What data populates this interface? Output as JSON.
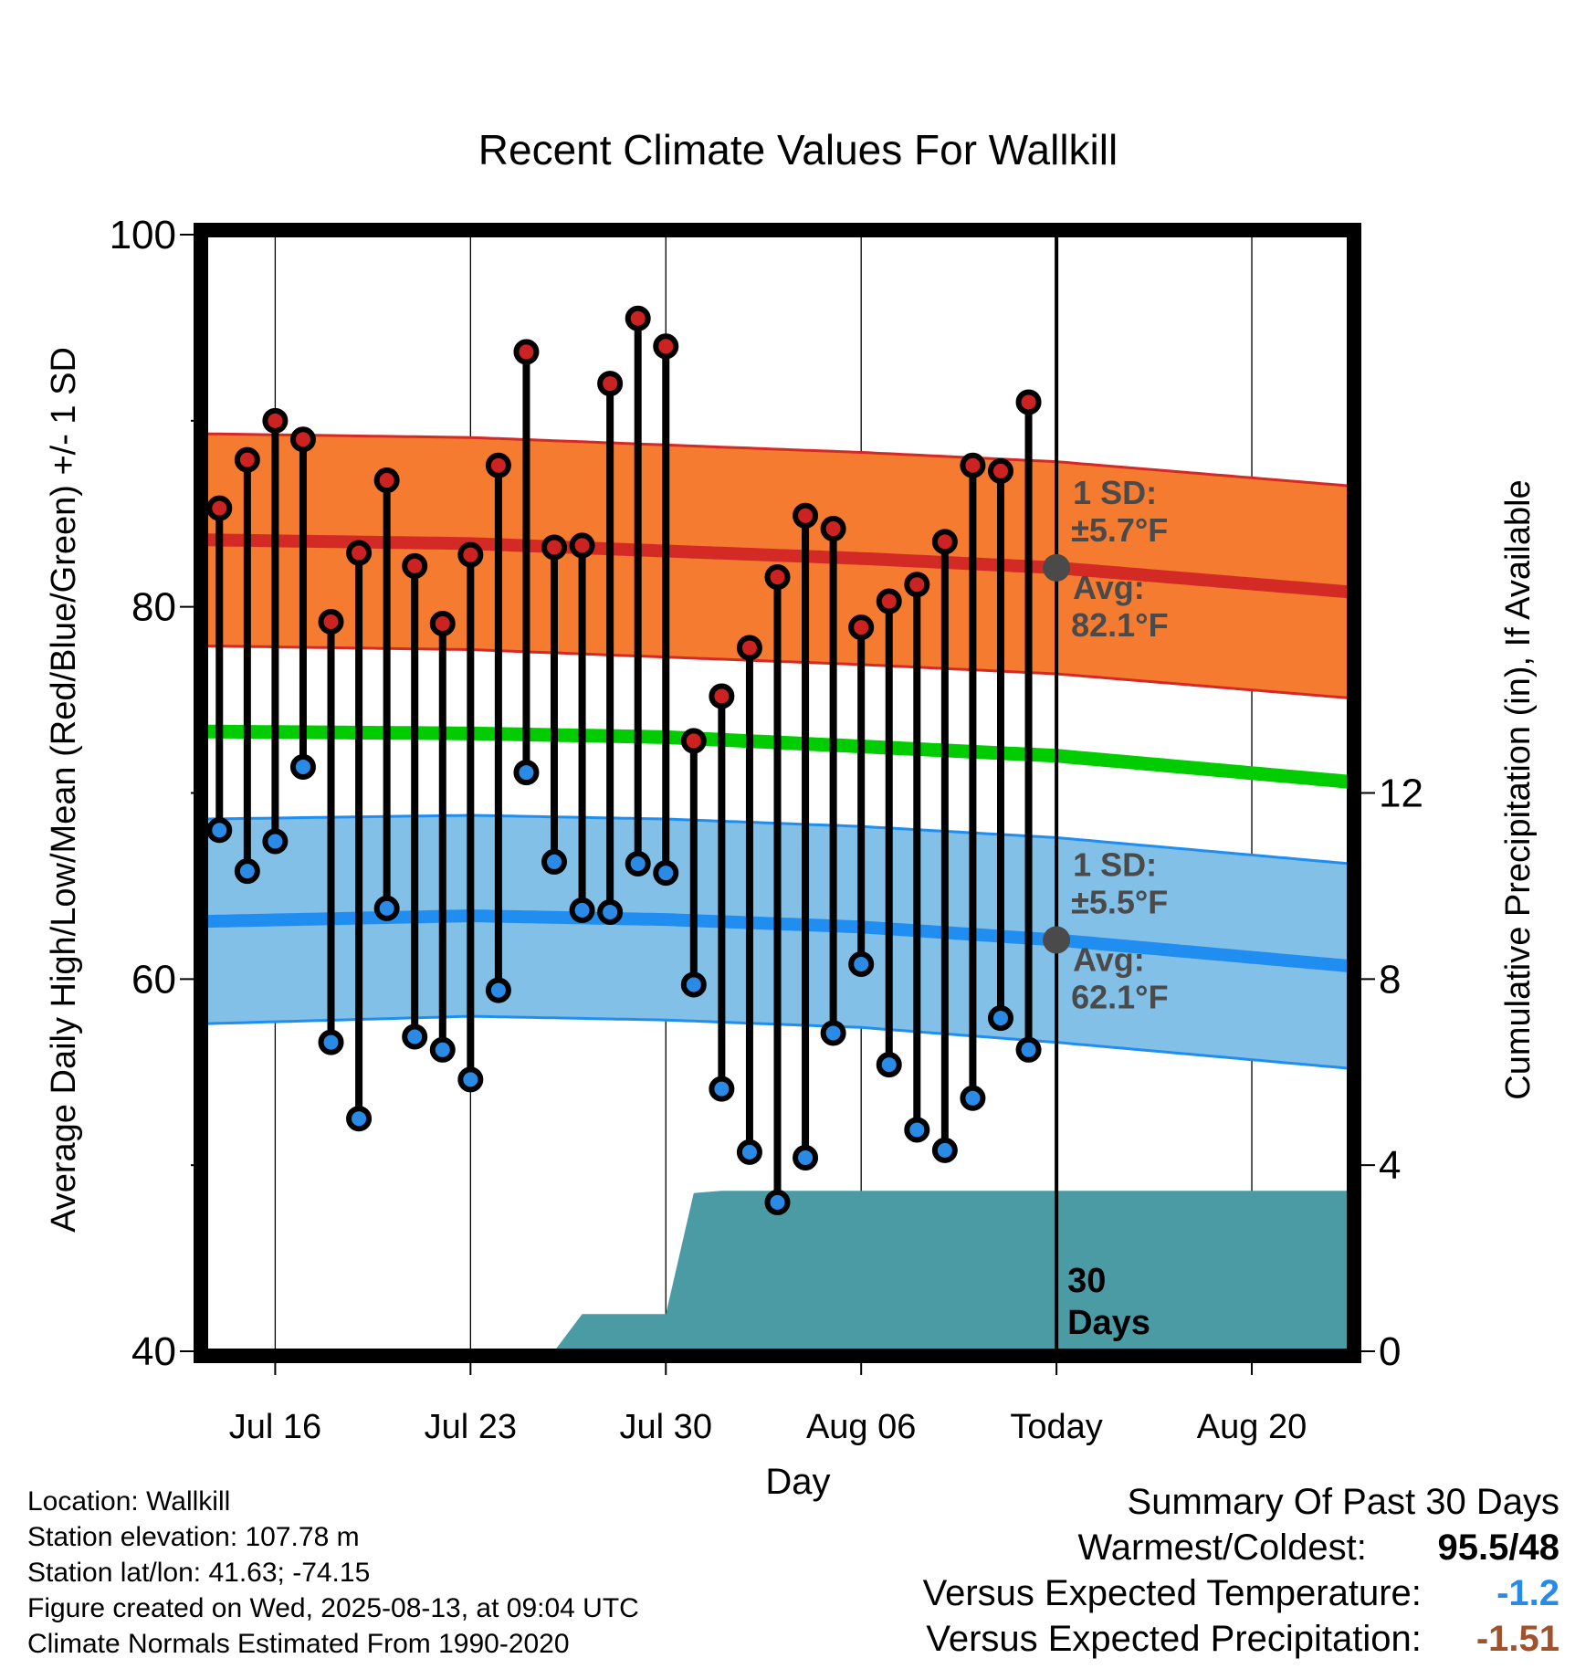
{
  "chart_data": {
    "type": "line",
    "title": "Recent Climate Values For Wallkill",
    "xlabel": "Day",
    "ylabel": "Average Daily High/Low/Mean (Red/Blue/Green) +/- 1 SD",
    "y2label": "Cumulative Precipitation (in), If Available",
    "ylim": [
      40,
      100
    ],
    "y_ticks": [
      40,
      60,
      80,
      100
    ],
    "y_minor_ticks": [
      50,
      70,
      90
    ],
    "y2lim": [
      0,
      24
    ],
    "y2_ticks": [
      0,
      4,
      8,
      12
    ],
    "xlim": [
      13.5,
      54.5
    ],
    "x_ticks": [
      {
        "day": 16,
        "label": "Jul 16"
      },
      {
        "day": 23,
        "label": "Jul 23"
      },
      {
        "day": 30,
        "label": "Jul 30"
      },
      {
        "day": 37,
        "label": "Aug 06"
      },
      {
        "day": 44,
        "label": "Today"
      },
      {
        "day": 51,
        "label": "Aug 20"
      }
    ],
    "grid": true,
    "today_day": 44,
    "today_marker_label": "30\nDays",
    "normals": {
      "high_avg": {
        "x": [
          13.5,
          23,
          30,
          37,
          44,
          54.5
        ],
        "y": [
          83.6,
          83.4,
          83.0,
          82.6,
          82.1,
          80.8
        ]
      },
      "high_plus": {
        "x": [
          13.5,
          23,
          30,
          37,
          44,
          54.5
        ],
        "y": [
          89.3,
          89.1,
          88.7,
          88.3,
          87.8,
          86.5
        ]
      },
      "high_minus": {
        "x": [
          13.5,
          23,
          30,
          37,
          44,
          54.5
        ],
        "y": [
          77.9,
          77.7,
          77.3,
          76.9,
          76.4,
          75.1
        ]
      },
      "mean": {
        "x": [
          13.5,
          23,
          30,
          37,
          44,
          54.5
        ],
        "y": [
          73.3,
          73.2,
          73.0,
          72.5,
          72.0,
          70.6
        ]
      },
      "low_avg": {
        "x": [
          13.5,
          23,
          30,
          37,
          44,
          54.5
        ],
        "y": [
          63.1,
          63.4,
          63.2,
          62.8,
          62.1,
          60.7
        ]
      },
      "low_plus": {
        "x": [
          13.5,
          23,
          30,
          37,
          44,
          54.5
        ],
        "y": [
          68.6,
          68.8,
          68.6,
          68.2,
          67.6,
          66.2
        ]
      },
      "low_minus": {
        "x": [
          13.5,
          23,
          30,
          37,
          44,
          54.5
        ],
        "y": [
          57.6,
          58.0,
          57.8,
          57.4,
          56.6,
          55.2
        ]
      }
    },
    "series": [
      {
        "name": "High",
        "color": "#cc2222",
        "x": [
          14,
          15,
          16,
          17,
          18,
          19,
          20,
          21,
          22,
          23,
          24,
          25,
          26,
          27,
          28,
          29,
          30,
          31,
          32,
          33,
          34,
          35,
          36,
          37,
          38,
          39,
          40,
          41,
          42,
          43
        ],
        "values": [
          85.3,
          87.9,
          90.0,
          89.0,
          79.2,
          82.9,
          86.8,
          82.2,
          79.1,
          82.8,
          87.6,
          93.7,
          83.2,
          83.3,
          92.0,
          95.5,
          94.0,
          72.8,
          75.2,
          77.8,
          81.6,
          84.9,
          84.2,
          78.9,
          80.3,
          81.2,
          83.5,
          87.6,
          87.3,
          91.0
        ]
      },
      {
        "name": "Low",
        "color": "#2a8be6",
        "x": [
          14,
          15,
          16,
          17,
          18,
          19,
          20,
          21,
          22,
          23,
          24,
          25,
          26,
          27,
          28,
          29,
          30,
          31,
          32,
          33,
          34,
          35,
          36,
          37,
          38,
          39,
          40,
          41,
          42,
          43
        ],
        "values": [
          68.0,
          65.8,
          67.4,
          71.4,
          56.6,
          52.5,
          63.8,
          56.9,
          56.2,
          54.6,
          59.4,
          71.1,
          66.3,
          63.7,
          63.6,
          66.2,
          65.7,
          59.7,
          54.1,
          50.7,
          48.0,
          50.4,
          57.1,
          60.8,
          55.4,
          51.9,
          50.8,
          53.6,
          57.9,
          56.2
        ]
      }
    ],
    "precipitation": {
      "x": [
        13.5,
        26.0,
        27.0,
        30.0,
        31.0,
        32.0,
        54.5
      ],
      "values": [
        0.0,
        0.0,
        0.8,
        0.8,
        3.4,
        3.45,
        3.45
      ]
    },
    "annotations": [
      {
        "series": "high",
        "sd_label": "1 SD:",
        "sd_value": "±5.7°F",
        "avg_label": "Avg:",
        "avg_value": "82.1°F",
        "avg_y": 82.1
      },
      {
        "series": "low",
        "sd_label": "1 SD:",
        "sd_value": "±5.5°F",
        "avg_label": "Avg:",
        "avg_value": "62.1°F",
        "avg_y": 62.1
      }
    ]
  },
  "footer": {
    "location": "Location: Wallkill",
    "elevation": "Station elevation: 107.78 m",
    "latlon": "Station lat/lon: 41.63; -74.15",
    "created": "Figure created on Wed, 2025-08-13, at 09:04 UTC",
    "normals": "Climate Normals Estimated From 1990-2020"
  },
  "summary": {
    "title": "Summary Of Past 30 Days",
    "warm_cold_label": "Warmest/Coldest:",
    "warm_cold_value": "95.5/48",
    "temp_label": "Versus Expected Temperature:",
    "temp_value": "-1.2",
    "temp_color": "#2a8be6",
    "precip_label": "Versus Expected Precipitation:",
    "precip_value": "-1.51",
    "precip_color": "#a0522d"
  },
  "colors": {
    "high_band": "#f47b30",
    "high_line": "#d42a26",
    "mean_line": "#00cc00",
    "low_band": "#82c0e8",
    "low_line": "#1f8ef0",
    "precip_fill": "#4a9ba4",
    "annotation_text": "#4a4a4a"
  }
}
